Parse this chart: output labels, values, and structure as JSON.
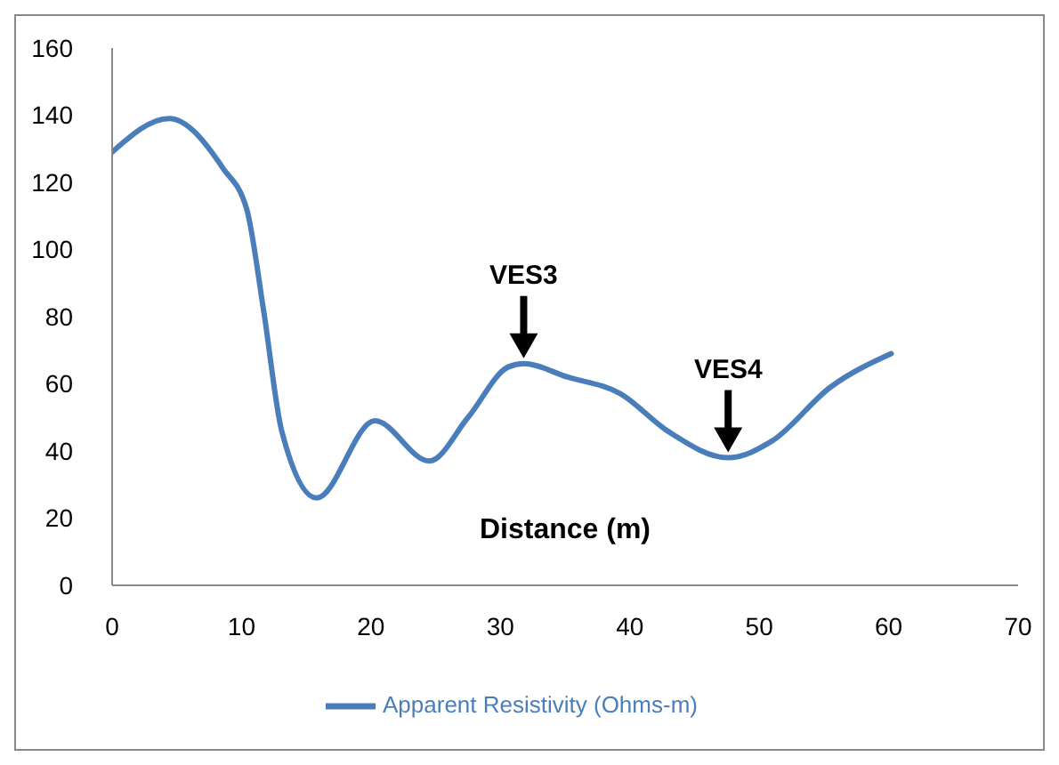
{
  "chart_data": {
    "type": "line",
    "xlabel": "Distance (m)",
    "x": [
      0,
      4.4,
      8.6,
      10.4,
      11.7,
      13.1,
      15.8,
      20.3,
      24.5,
      27.5,
      30.6,
      31.8,
      35.2,
      39.3,
      42.9,
      47.6,
      51,
      55.5,
      60.2
    ],
    "series": [
      {
        "name": "Apparent Resistivity (Ohms-m)",
        "color": "#4a7ebb",
        "values": [
          129,
          139,
          124,
          112,
          82,
          46,
          26,
          49,
          37,
          50,
          65,
          66,
          62,
          57,
          46,
          38,
          43,
          59,
          69
        ]
      }
    ],
    "xlim": [
      0,
      70
    ],
    "xticks": [
      0,
      10,
      20,
      30,
      40,
      50,
      60,
      70
    ],
    "ylim": [
      0,
      160
    ],
    "yticks": [
      0,
      20,
      40,
      60,
      80,
      100,
      120,
      140,
      160
    ],
    "annotations": [
      {
        "text": "VES3",
        "x": 31.8,
        "y": 66
      },
      {
        "text": "VES4",
        "x": 47.6,
        "y": 38
      }
    ],
    "grid": false,
    "legend": "bottom",
    "marker": "none",
    "line_style": "solid"
  }
}
